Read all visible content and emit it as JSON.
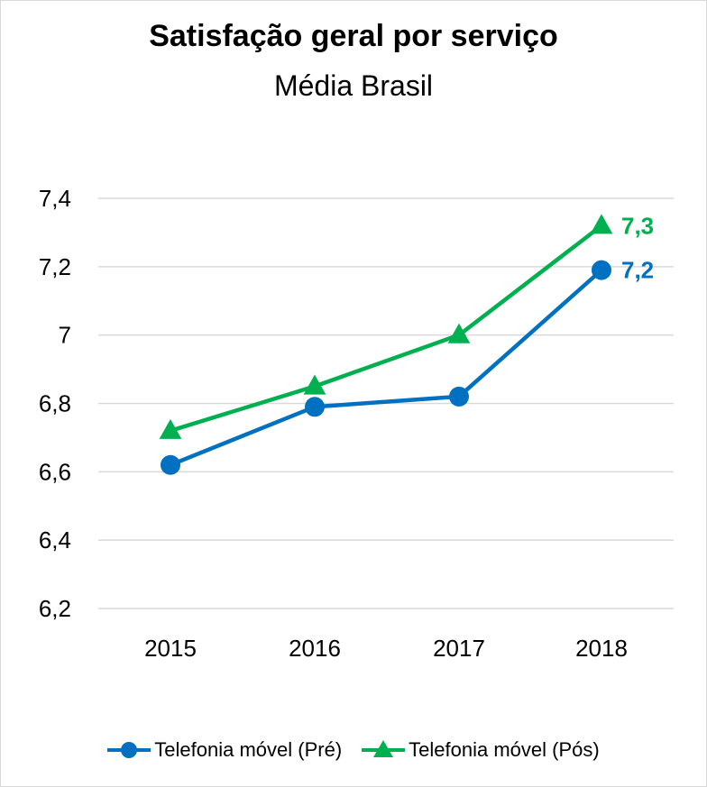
{
  "chart_data": {
    "type": "line",
    "title": "Satisfação geral por serviço",
    "subtitle": "Média Brasil",
    "xlabel": "",
    "ylabel": "",
    "categories": [
      "2015",
      "2016",
      "2017",
      "2018"
    ],
    "ylim": [
      6.2,
      7.4
    ],
    "yticks": [
      6.2,
      6.4,
      6.6,
      6.8,
      7.0,
      7.2,
      7.4
    ],
    "ytick_labels": [
      "6,2",
      "6,4",
      "6,6",
      "6,8",
      "7",
      "7,2",
      "7,4"
    ],
    "grid": true,
    "legend_position": "bottom",
    "series": [
      {
        "name": "Telefonia móvel (Pré)",
        "values": [
          6.62,
          6.79,
          6.82,
          7.19
        ],
        "color": "#0070C0",
        "marker": "circle",
        "end_label": "7,2"
      },
      {
        "name": "Telefonia móvel (Pós)",
        "values": [
          6.72,
          6.85,
          7.0,
          7.32
        ],
        "color": "#00B050",
        "marker": "triangle",
        "end_label": "7,3"
      }
    ]
  }
}
